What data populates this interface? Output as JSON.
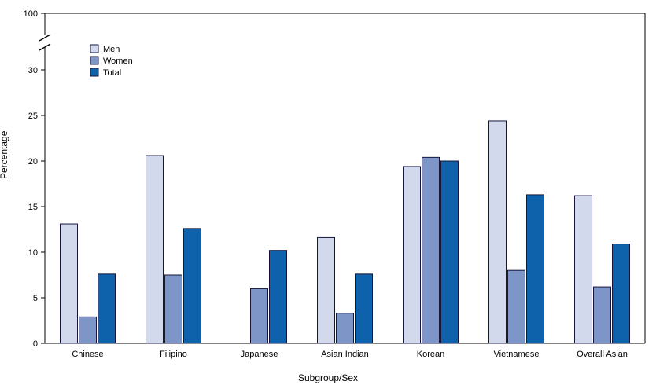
{
  "chart_data": {
    "type": "bar",
    "title": "",
    "xlabel": "Subgroup/Sex",
    "ylabel": "Percentage",
    "categories": [
      "Chinese",
      "Filipino",
      "Japanese",
      "Asian Indian",
      "Korean",
      "Vietnamese",
      "Overall Asian"
    ],
    "series": [
      {
        "name": "Men",
        "color": "#d3d9ec",
        "values": [
          13.1,
          20.6,
          null,
          11.6,
          19.4,
          24.4,
          16.2
        ]
      },
      {
        "name": "Women",
        "color": "#7e95c7",
        "values": [
          2.9,
          7.5,
          6.0,
          3.3,
          20.4,
          8.0,
          6.2
        ]
      },
      {
        "name": "Total",
        "color": "#0e62ab",
        "values": [
          7.6,
          12.6,
          10.2,
          7.6,
          20.0,
          16.3,
          10.9
        ]
      }
    ],
    "yticks": [
      0,
      5,
      10,
      15,
      20,
      25,
      30
    ],
    "y_break_top_label": "100",
    "ylim": [
      0,
      33
    ],
    "axis_break": true,
    "grid": false,
    "legend_position": "top-left",
    "bar_border_color": "#16163c",
    "axis_color": "#000000"
  }
}
